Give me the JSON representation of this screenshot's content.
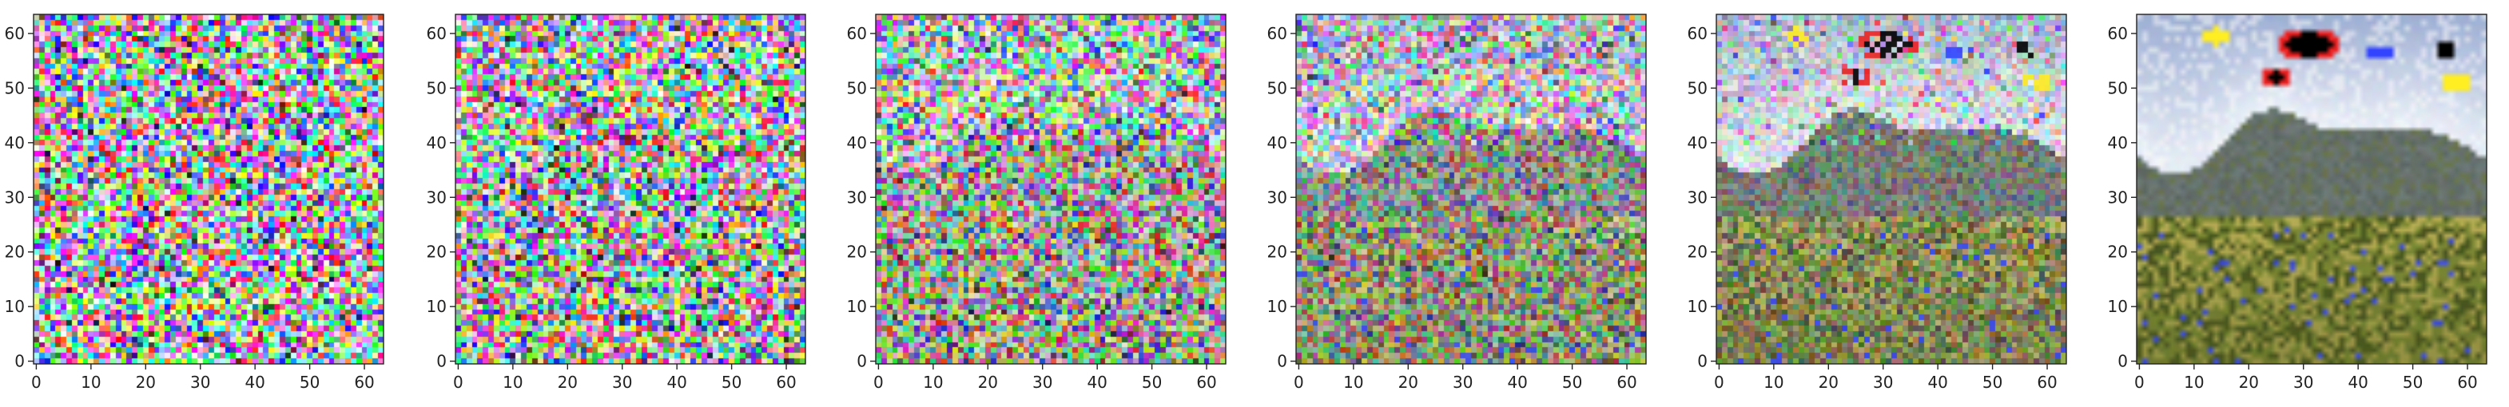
{
  "figure": {
    "description_panels": 6,
    "panels": [
      {
        "id": "step-1",
        "noise_level": 1.0,
        "content_alpha": 0.0,
        "blob_strength": 0.0
      },
      {
        "id": "step-2",
        "noise_level": 0.96,
        "content_alpha": 0.06,
        "blob_strength": 0.0
      },
      {
        "id": "step-3",
        "noise_level": 0.82,
        "content_alpha": 0.22,
        "blob_strength": 0.0
      },
      {
        "id": "step-4",
        "noise_level": 0.62,
        "content_alpha": 0.45,
        "blob_strength": 0.25
      },
      {
        "id": "step-5",
        "noise_level": 0.35,
        "content_alpha": 0.72,
        "blob_strength": 0.6
      },
      {
        "id": "step-6",
        "noise_level": 0.04,
        "content_alpha": 0.97,
        "blob_strength": 1.0
      }
    ],
    "axis": {
      "x_ticks": [
        0,
        10,
        20,
        30,
        40,
        50,
        60
      ],
      "y_ticks": [
        0,
        10,
        20,
        30,
        40,
        50,
        60
      ],
      "xlim": [
        -0.5,
        63.5
      ],
      "ylim": [
        63.5,
        -0.5
      ]
    },
    "colors": {
      "sky_top": "#9fb0d6",
      "sky_bottom": "#e8eef8",
      "mountain": "#6f7a78",
      "mountain_shadow": "#4e5a52",
      "foliage_dark": "#47541c",
      "foliage_mid": "#7d8a32",
      "foliage_light": "#b7ad52",
      "artifact_black": "#000000",
      "artifact_red": "#ee2222",
      "artifact_yellow": "#ffee22",
      "artifact_blue": "#3344ff"
    }
  }
}
